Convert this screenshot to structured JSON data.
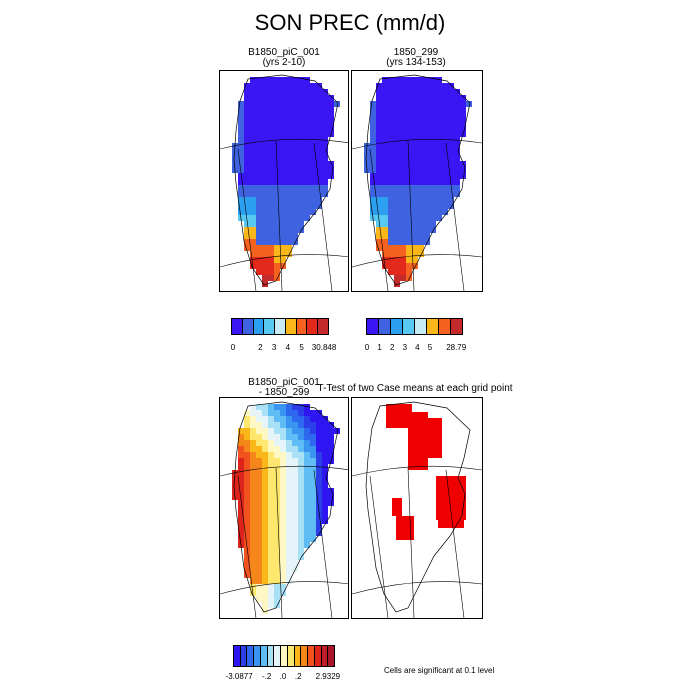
{
  "title": "SON PREC (mm/d)",
  "panels": [
    {
      "line1": "B1850_piC_001",
      "line2": "(yrs 2-10)"
    },
    {
      "line1": "1850_299",
      "line2": "(yrs 134-153)"
    },
    {
      "line1": "B1850_piC_001",
      "line2": "- 1850_299"
    },
    {
      "line1": "T-Test of two Case means at each grid point",
      "line2": ""
    }
  ],
  "colorbars": [
    {
      "colors": [
        "#3b16f5",
        "#3f62e1",
        "#2d9ff0",
        "#57c9f2",
        "#c8ecf6",
        "#f9b71a",
        "#f5611f",
        "#e3281c",
        "#c42a2a"
      ],
      "labels": [
        "0",
        "2",
        "3",
        "4",
        "5",
        "30.848"
      ]
    },
    {
      "colors": [
        "#3b16f5",
        "#3f62e1",
        "#2d9ff0",
        "#57c9f2",
        "#c8ecf6",
        "#f9b71a",
        "#f5611f",
        "#c42a2a"
      ],
      "labels": [
        "0",
        "1",
        "2",
        "3",
        "4",
        "5",
        "28.79"
      ]
    },
    {
      "colors": [
        "#2d16f2",
        "#2b3ee8",
        "#2d68ef",
        "#3a95f0",
        "#5fbcf4",
        "#a8e0f5",
        "#e4f4f8",
        "#fff8c4",
        "#fde76f",
        "#f9b71a",
        "#f58619",
        "#f1521e",
        "#dd241c",
        "#bf1d2a",
        "#a8152b"
      ],
      "labels": [
        "-3.0877",
        "-.2",
        ".0",
        ".2",
        "2.9329"
      ]
    }
  ],
  "significance_note": "Cells are significant at 0.1 level",
  "chart_data": {
    "type": "heatmap",
    "title": "SON PREC (mm/d)",
    "subplots": [
      {
        "title": "B1850_piC_001 (yrs 2-10)",
        "colorbar_levels": [
          0,
          2,
          3,
          4,
          5,
          30.848
        ]
      },
      {
        "title": "1850_299 (yrs 134-153)",
        "colorbar_levels": [
          0,
          1,
          2,
          3,
          4,
          5,
          28.79
        ]
      },
      {
        "title": "B1850_piC_001 - 1850_299",
        "colorbar_range": [
          -3.0877,
          2.9329
        ],
        "colorbar_levels": [
          -0.2,
          0.0,
          0.2
        ]
      },
      {
        "title": "T-Test of two Case means at each grid point",
        "note": "Cells are significant at 0.1 level"
      }
    ]
  }
}
